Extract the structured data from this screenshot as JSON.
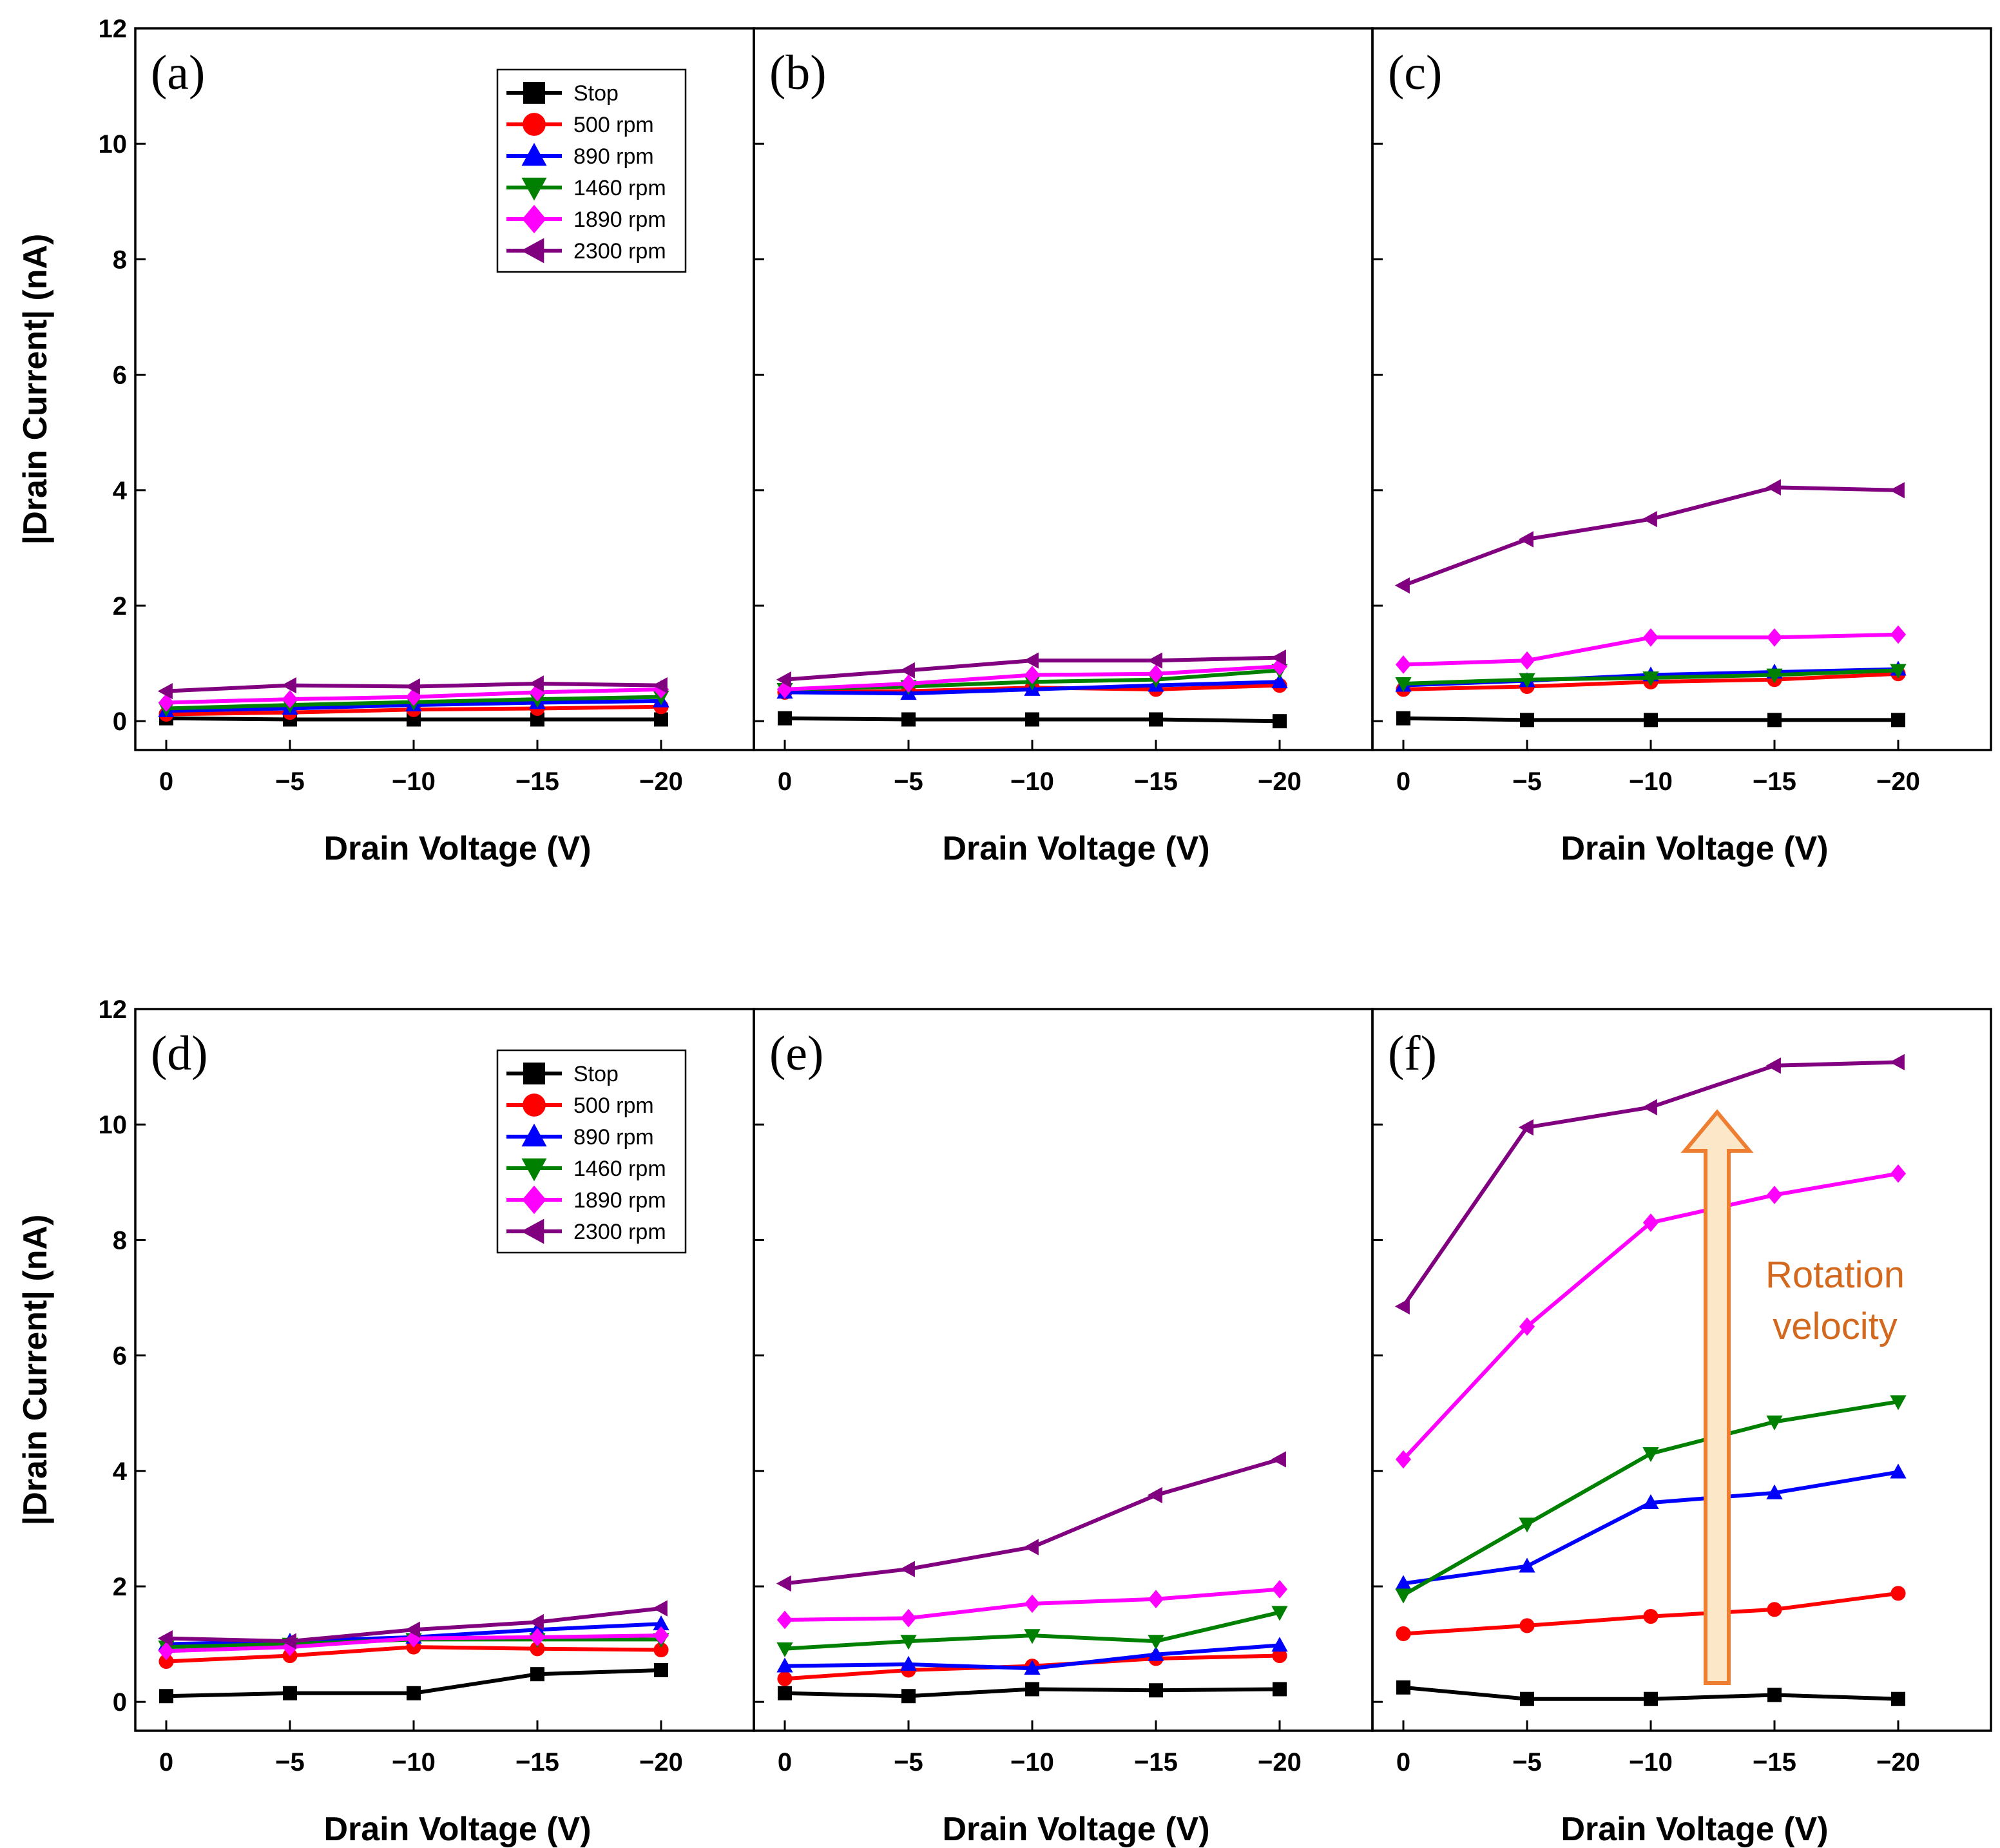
{
  "chart_data": {
    "type": "line",
    "layout": "2x3 grid of panels with shared y-axis per row",
    "xlabel": "Drain Voltage (V)",
    "ylabel": "|Drain Current| (nA)",
    "x": [
      0,
      -5,
      -10,
      -15,
      -20
    ],
    "xtick_labels": [
      "0",
      "−5",
      "−10",
      "−15",
      "−20"
    ],
    "ylim": [
      -0.5,
      12
    ],
    "yticks": [
      0,
      2,
      4,
      6,
      8,
      10,
      12
    ],
    "series_style": [
      {
        "name": "Stop",
        "color": "#000000",
        "marker": "square"
      },
      {
        "name": "500 rpm",
        "color": "#ff0000",
        "marker": "circle"
      },
      {
        "name": "890 rpm",
        "color": "#0000ff",
        "marker": "triangle-up"
      },
      {
        "name": "1460 rpm",
        "color": "#008000",
        "marker": "triangle-down"
      },
      {
        "name": "1890 rpm",
        "color": "#ff00ff",
        "marker": "diamond"
      },
      {
        "name": "2300 rpm",
        "color": "#800080",
        "marker": "triangle-left"
      }
    ],
    "panels": [
      {
        "label": "(a)",
        "legend": true,
        "series": [
          {
            "name": "Stop",
            "values": [
              0.05,
              0.03,
              0.03,
              0.03,
              0.03
            ]
          },
          {
            "name": "500 rpm",
            "values": [
              0.12,
              0.15,
              0.2,
              0.22,
              0.25
            ]
          },
          {
            "name": "890 rpm",
            "values": [
              0.18,
              0.22,
              0.28,
              0.32,
              0.35
            ]
          },
          {
            "name": "1460 rpm",
            "values": [
              0.22,
              0.28,
              0.33,
              0.38,
              0.42
            ]
          },
          {
            "name": "1890 rpm",
            "values": [
              0.32,
              0.38,
              0.42,
              0.5,
              0.55
            ]
          },
          {
            "name": "2300 rpm",
            "values": [
              0.52,
              0.62,
              0.6,
              0.65,
              0.62
            ]
          }
        ]
      },
      {
        "label": "(b)",
        "legend": false,
        "series": [
          {
            "name": "Stop",
            "values": [
              0.05,
              0.03,
              0.03,
              0.03,
              0.0
            ]
          },
          {
            "name": "500 rpm",
            "values": [
              0.5,
              0.52,
              0.58,
              0.55,
              0.62
            ]
          },
          {
            "name": "890 rpm",
            "values": [
              0.5,
              0.48,
              0.55,
              0.62,
              0.68
            ]
          },
          {
            "name": "1460 rpm",
            "values": [
              0.55,
              0.6,
              0.68,
              0.72,
              0.88
            ]
          },
          {
            "name": "1890 rpm",
            "values": [
              0.55,
              0.65,
              0.8,
              0.82,
              0.95
            ]
          },
          {
            "name": "2300 rpm",
            "values": [
              0.72,
              0.88,
              1.05,
              1.05,
              1.1
            ]
          }
        ]
      },
      {
        "label": "(c)",
        "legend": false,
        "series": [
          {
            "name": "Stop",
            "values": [
              0.05,
              0.02,
              0.02,
              0.02,
              0.02
            ]
          },
          {
            "name": "500 rpm",
            "values": [
              0.55,
              0.6,
              0.68,
              0.72,
              0.82
            ]
          },
          {
            "name": "890 rpm",
            "values": [
              0.62,
              0.7,
              0.8,
              0.85,
              0.9
            ]
          },
          {
            "name": "1460 rpm",
            "values": [
              0.65,
              0.72,
              0.75,
              0.8,
              0.88
            ]
          },
          {
            "name": "1890 rpm",
            "values": [
              0.98,
              1.05,
              1.45,
              1.45,
              1.5
            ]
          },
          {
            "name": "2300 rpm",
            "values": [
              2.35,
              3.15,
              3.5,
              4.05,
              4.0
            ]
          }
        ]
      },
      {
        "label": "(d)",
        "legend": true,
        "series": [
          {
            "name": "Stop",
            "values": [
              0.1,
              0.15,
              0.15,
              0.48,
              0.55
            ]
          },
          {
            "name": "500 rpm",
            "values": [
              0.7,
              0.8,
              0.95,
              0.92,
              0.9
            ]
          },
          {
            "name": "890 rpm",
            "values": [
              1.0,
              1.05,
              1.12,
              1.25,
              1.35
            ]
          },
          {
            "name": "1460 rpm",
            "values": [
              0.95,
              1.0,
              1.08,
              1.08,
              1.08
            ]
          },
          {
            "name": "1890 rpm",
            "values": [
              0.88,
              0.95,
              1.1,
              1.12,
              1.15
            ]
          },
          {
            "name": "2300 rpm",
            "values": [
              1.1,
              1.05,
              1.25,
              1.38,
              1.62
            ]
          }
        ]
      },
      {
        "label": "(e)",
        "legend": false,
        "series": [
          {
            "name": "Stop",
            "values": [
              0.15,
              0.1,
              0.22,
              0.2,
              0.22
            ]
          },
          {
            "name": "500 rpm",
            "values": [
              0.4,
              0.55,
              0.62,
              0.75,
              0.8
            ]
          },
          {
            "name": "890 rpm",
            "values": [
              0.62,
              0.65,
              0.58,
              0.82,
              0.98
            ]
          },
          {
            "name": "1460 rpm",
            "values": [
              0.92,
              1.05,
              1.15,
              1.05,
              1.55
            ]
          },
          {
            "name": "1890 rpm",
            "values": [
              1.42,
              1.45,
              1.7,
              1.78,
              1.95
            ]
          },
          {
            "name": "2300 rpm",
            "values": [
              2.05,
              2.3,
              2.68,
              3.58,
              4.2
            ]
          }
        ]
      },
      {
        "label": "(f)",
        "legend": false,
        "series": [
          {
            "name": "Stop",
            "values": [
              0.25,
              0.05,
              0.05,
              0.12,
              0.05
            ]
          },
          {
            "name": "500 rpm",
            "values": [
              1.18,
              1.32,
              1.48,
              1.6,
              1.88
            ]
          },
          {
            "name": "890 rpm",
            "values": [
              2.05,
              2.35,
              3.45,
              3.62,
              3.98
            ]
          },
          {
            "name": "1460 rpm",
            "values": [
              1.85,
              3.08,
              4.3,
              4.85,
              5.2
            ]
          },
          {
            "name": "1890 rpm",
            "values": [
              4.2,
              6.5,
              8.3,
              8.78,
              9.15
            ]
          },
          {
            "name": "2300 rpm",
            "values": [
              6.85,
              9.95,
              10.3,
              11.02,
              11.08
            ]
          }
        ]
      }
    ],
    "annotation": {
      "panel": "(f)",
      "text_lines": [
        "Rotation",
        "velocity"
      ],
      "color": "#d2691e",
      "arrow": "upward"
    }
  }
}
